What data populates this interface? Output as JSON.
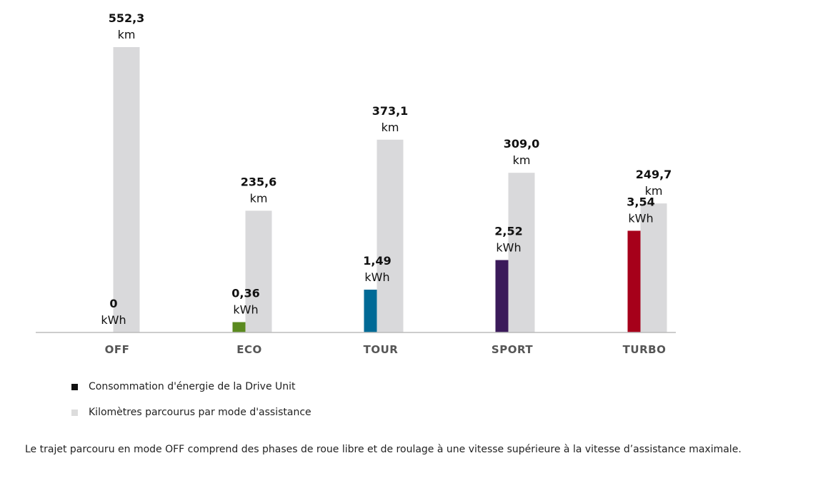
{
  "chart_data": {
    "type": "bar",
    "categories": [
      "OFF",
      "ECO",
      "TOUR",
      "SPORT",
      "TURBO"
    ],
    "series": [
      {
        "name": "Consommation d'énergie de la Drive Unit",
        "values": [
          0,
          0.36,
          1.49,
          2.52,
          3.54
        ],
        "labels": [
          "0",
          "0,36",
          "1,49",
          "2,52",
          "3,54"
        ],
        "unit": "kWh",
        "colors": [
          "#000000",
          "#5a8a1f",
          "#006a96",
          "#3b1a5a",
          "#a6001a"
        ]
      },
      {
        "name": "Kilomètres parcourus par mode d'assistance",
        "values": [
          552.3,
          235.6,
          373.1,
          309.0,
          249.7
        ],
        "labels": [
          "552,3",
          "235,6",
          "373,1",
          "309,0",
          "249,7"
        ],
        "unit": "km",
        "colors": [
          "#d9d9db",
          "#d9d9db",
          "#d9d9db",
          "#d9d9db",
          "#d9d9db"
        ]
      }
    ],
    "legend": [
      {
        "label": "Consommation d'énergie de la Drive Unit",
        "color": "#111111"
      },
      {
        "label": "Kilomètres parcourus par mode d'assistance",
        "color": "#dcdcdc"
      }
    ],
    "note": "Le trajet parcouru en mode OFF comprend des phases de roue libre et de roulage à une vitesse supérieure à la vitesse d’assistance maximale."
  }
}
